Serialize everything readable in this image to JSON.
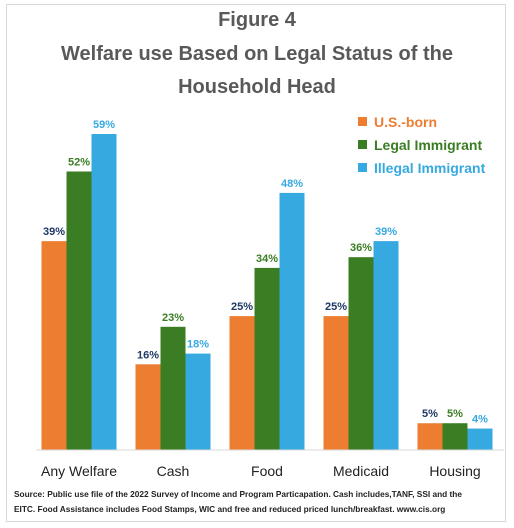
{
  "title_line1": "Figure 4",
  "title_line2": "Welfare use Based on Legal Status of the",
  "title_line3": "Household Head",
  "source_line1": "Source: Public use file of the 2022 Survey of Income and Program Particapation.  Cash includes,TANF, SSI and the",
  "source_line2": "EITC.  Food Assistance includes Food Stamps, WIC and free and reduced priced lunch/breakfast.  www.cis.org",
  "chart_data": {
    "type": "bar",
    "title": "Figure 4 Welfare use Based on Legal Status of the Household Head",
    "categories": [
      "Any Welfare",
      "Cash",
      "Food",
      "Medicaid",
      "Housing"
    ],
    "series": [
      {
        "name": "U.S.-born",
        "values": [
          39,
          16,
          25,
          25,
          5
        ],
        "labels": [
          "39%",
          "16%",
          "25%",
          "25%",
          "5%"
        ],
        "color": "#ED7D31",
        "label_color": "#1F3864"
      },
      {
        "name": "Legal Immigrant",
        "values": [
          52,
          23,
          34,
          36,
          5
        ],
        "labels": [
          "52%",
          "23%",
          "34%",
          "36%",
          "5%"
        ],
        "color": "#3A7D22",
        "label_color": "#3A7D22"
      },
      {
        "name": "Illegal Immigrant",
        "values": [
          59,
          18,
          48,
          39,
          4
        ],
        "labels": [
          "59%",
          "18%",
          "48%",
          "39%",
          "4%"
        ],
        "color": "#36A9E1",
        "label_color": "#36A9E1"
      }
    ],
    "ylim": [
      0,
      60
    ],
    "grid": false,
    "legend_position": "top-right",
    "xlabel": "",
    "ylabel": ""
  }
}
